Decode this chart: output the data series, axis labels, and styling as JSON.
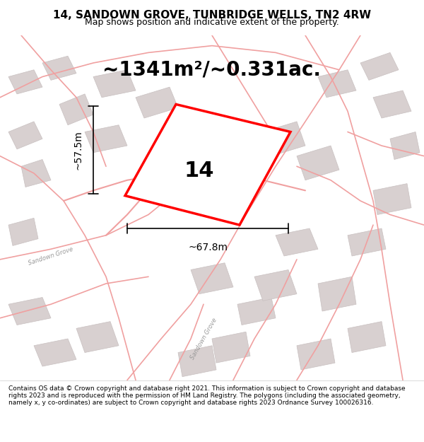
{
  "title": "14, SANDOWN GROVE, TUNBRIDGE WELLS, TN2 4RW",
  "subtitle": "Map shows position and indicative extent of the property.",
  "area_text": "~1341m²/~0.331ac.",
  "label_number": "14",
  "dim_width": "~67.8m",
  "dim_height": "~57.5m",
  "footer": "Contains OS data © Crown copyright and database right 2021. This information is subject to Crown copyright and database rights 2023 and is reproduced with the permission of HM Land Registry. The polygons (including the associated geometry, namely x, y co-ordinates) are subject to Crown copyright and database rights 2023 Ordnance Survey 100026316.",
  "bg_color": "#f5f0f0",
  "map_bg": "#f9f5f5",
  "road_color": "#f0a0a0",
  "building_color": "#d8d0d0",
  "building_edge": "#c8c0c0",
  "highlight_color": "#ff0000",
  "road_label_color": "#aaaaaa",
  "title_fontsize": 11,
  "subtitle_fontsize": 9,
  "area_fontsize": 20,
  "number_fontsize": 22,
  "dim_fontsize": 10,
  "footer_fontsize": 6.5
}
